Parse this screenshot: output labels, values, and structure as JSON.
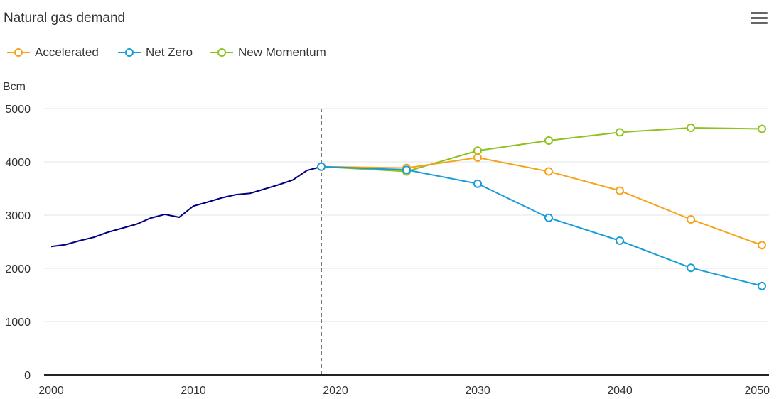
{
  "header": {
    "title": "Natural gas demand",
    "menu_icon": "hamburger-menu-icon"
  },
  "chart_data": {
    "type": "line",
    "title": "Natural gas demand",
    "ylabel": "Bcm",
    "xlabel": "",
    "xlim": [
      2000,
      2050
    ],
    "ylim": [
      0,
      5000
    ],
    "x_ticks": [
      "2000",
      "2010",
      "2020",
      "2030",
      "2040",
      "2050"
    ],
    "y_ticks": [
      "0",
      "1000",
      "2000",
      "3000",
      "4000",
      "5000"
    ],
    "grid": true,
    "legend_position": "top-left",
    "reference_line": {
      "x": 2019,
      "style": "dashed"
    },
    "historical": {
      "color": "#000080",
      "x": [
        2000,
        2001,
        2002,
        2003,
        2004,
        2005,
        2006,
        2007,
        2008,
        2009,
        2010,
        2011,
        2012,
        2013,
        2014,
        2015,
        2016,
        2017,
        2018,
        2019
      ],
      "values": [
        2410,
        2445,
        2520,
        2585,
        2680,
        2755,
        2830,
        2945,
        3015,
        2960,
        3170,
        3245,
        3325,
        3385,
        3410,
        3490,
        3570,
        3660,
        3840,
        3910
      ]
    },
    "x": [
      2019,
      2025,
      2030,
      2035,
      2040,
      2045,
      2050
    ],
    "series": [
      {
        "name": "Accelerated",
        "color": "#F7A21B",
        "values": [
          3910,
          3885,
          4080,
          3820,
          3460,
          2920,
          2435
        ]
      },
      {
        "name": "Net Zero",
        "color": "#199DD8",
        "values": [
          3910,
          3850,
          3590,
          2950,
          2520,
          2010,
          1670
        ]
      },
      {
        "name": "New Momentum",
        "color": "#8DC21F",
        "values": [
          3910,
          3820,
          4210,
          4400,
          4555,
          4640,
          4620
        ]
      }
    ]
  }
}
